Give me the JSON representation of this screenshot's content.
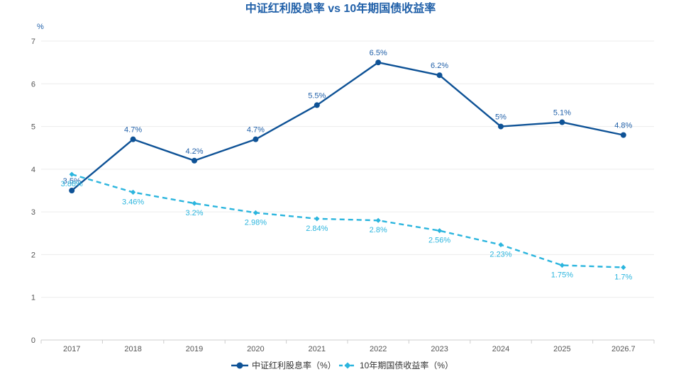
{
  "chart_data": {
    "type": "line",
    "title": "中证红利股息率 vs 10年期国债收益率",
    "y_unit": "%",
    "ylim": [
      0,
      7
    ],
    "yticks": [
      0,
      1,
      2,
      3,
      4,
      5,
      6,
      7
    ],
    "grid": true,
    "legend_position": "bottom",
    "categories": [
      "2017",
      "2018",
      "2019",
      "2020",
      "2021",
      "2022",
      "2023",
      "2024",
      "2025",
      "2026.7"
    ],
    "series": [
      {
        "name": "中证红利股息率（%）",
        "color": "#0e5296",
        "line_style": "solid",
        "marker": "circle",
        "values": [
          3.5,
          4.7,
          4.2,
          4.7,
          5.5,
          6.5,
          6.2,
          5.0,
          5.1,
          4.8
        ],
        "labels": [
          "3.5%",
          "4.7%",
          "4.2%",
          "4.7%",
          "5.5%",
          "6.5%",
          "6.2%",
          "5%",
          "5.1%",
          "4.8%"
        ]
      },
      {
        "name": "10年期国债收益率（%）",
        "color": "#2bb5de",
        "line_style": "dashed",
        "marker": "diamond",
        "values": [
          3.88,
          3.46,
          3.2,
          2.98,
          2.84,
          2.8,
          2.56,
          2.23,
          1.75,
          1.7
        ],
        "labels": [
          "3.88%",
          "3.46%",
          "3.2%",
          "2.98%",
          "2.84%",
          "2.8%",
          "2.56%",
          "2.23%",
          "1.75%",
          "1.7%"
        ]
      }
    ]
  }
}
